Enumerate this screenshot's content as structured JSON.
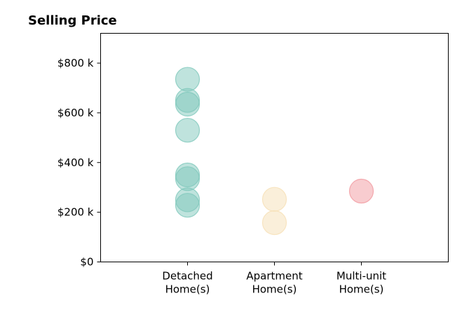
{
  "chart_data": {
    "type": "scatter",
    "title": "Selling Price",
    "xlabel": "",
    "ylabel": "",
    "categories": [
      [
        "Detached",
        "Home(s)"
      ],
      [
        "Apartment",
        "Home(s)"
      ],
      [
        "Multi-unit",
        "Home(s)"
      ]
    ],
    "xlim": [
      0,
      4
    ],
    "ylim": [
      0,
      920000
    ],
    "y_ticks": [
      {
        "value": 0,
        "label": "$0"
      },
      {
        "value": 200000,
        "label": "$200 k"
      },
      {
        "value": 400000,
        "label": "$400 k"
      },
      {
        "value": 600000,
        "label": "$600 k"
      },
      {
        "value": 800000,
        "label": "$800 k"
      }
    ],
    "grid": false,
    "legend": "none",
    "series": [
      {
        "category": 0,
        "color": "#7fc8bb",
        "values": [
          735000,
          650000,
          635000,
          530000,
          350000,
          335000,
          250000,
          228000
        ]
      },
      {
        "category": 1,
        "color": "#f6e0b5",
        "values": [
          252000,
          158000
        ]
      },
      {
        "category": 2,
        "color": "#f1999f",
        "values": [
          285000
        ]
      }
    ]
  }
}
